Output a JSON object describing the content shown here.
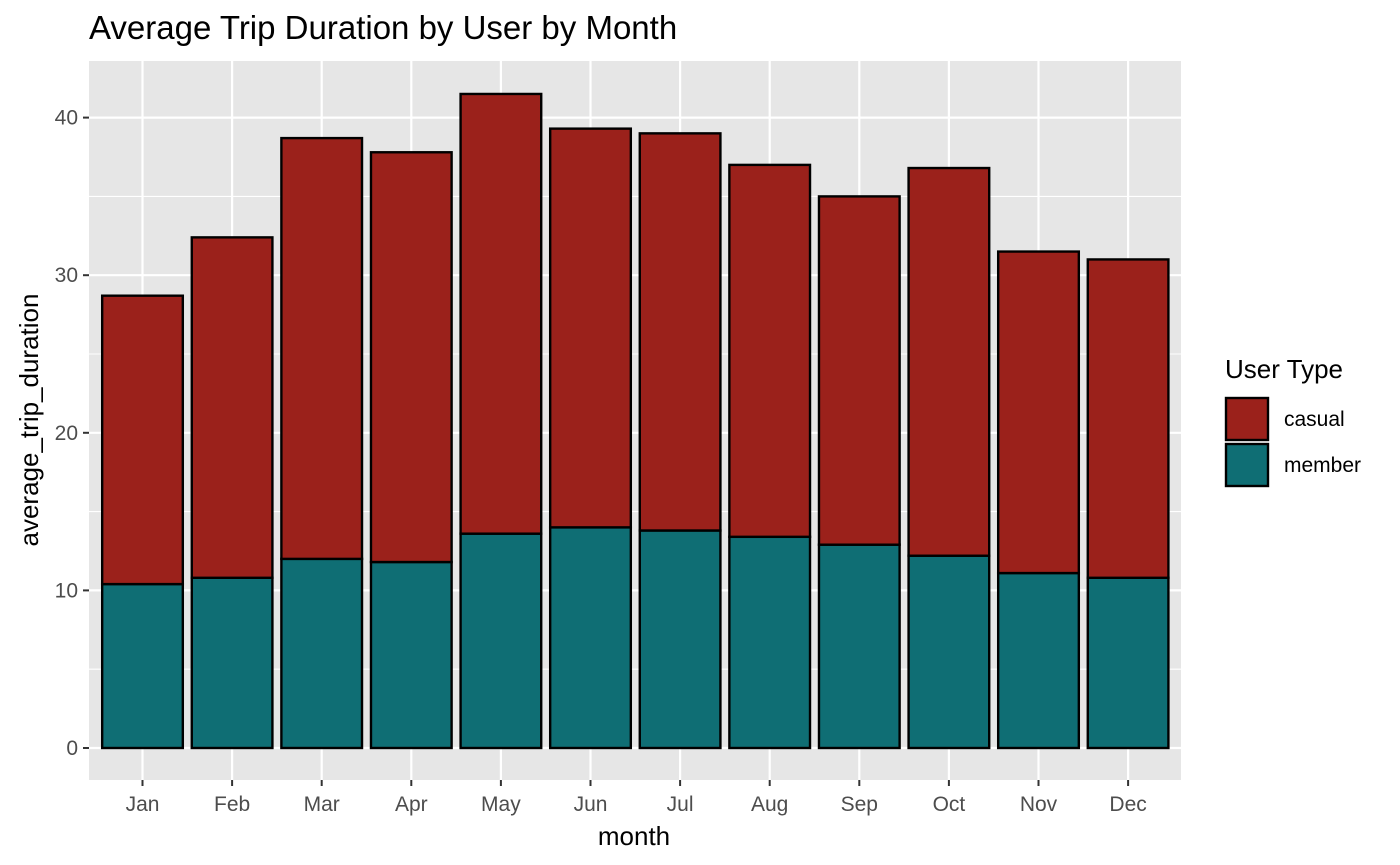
{
  "chart_data": {
    "type": "bar",
    "stacked": true,
    "title": "Average Trip Duration by User by Month",
    "xlabel": "month",
    "ylabel": "average_trip_duration",
    "categories": [
      "Jan",
      "Feb",
      "Mar",
      "Apr",
      "May",
      "Jun",
      "Jul",
      "Aug",
      "Sep",
      "Oct",
      "Nov",
      "Dec"
    ],
    "ylim": [
      0,
      43.5
    ],
    "yticks": [
      0,
      10,
      20,
      30,
      40
    ],
    "grid": true,
    "legend": {
      "title": "User Type",
      "position": "right"
    },
    "series": [
      {
        "name": "member",
        "color": "#0f6e74",
        "values": [
          10.4,
          10.8,
          12.0,
          11.8,
          13.6,
          14.0,
          13.8,
          13.4,
          12.9,
          12.2,
          11.1,
          10.8
        ]
      },
      {
        "name": "casual",
        "color": "#9b211b",
        "values": [
          18.3,
          21.6,
          26.7,
          26.0,
          27.9,
          25.3,
          25.2,
          23.6,
          22.1,
          24.6,
          20.4,
          20.2
        ]
      }
    ],
    "colors": {
      "panel_background": "#e6e6e6",
      "grid": "#ffffff",
      "bar_outline": "#000000"
    }
  }
}
